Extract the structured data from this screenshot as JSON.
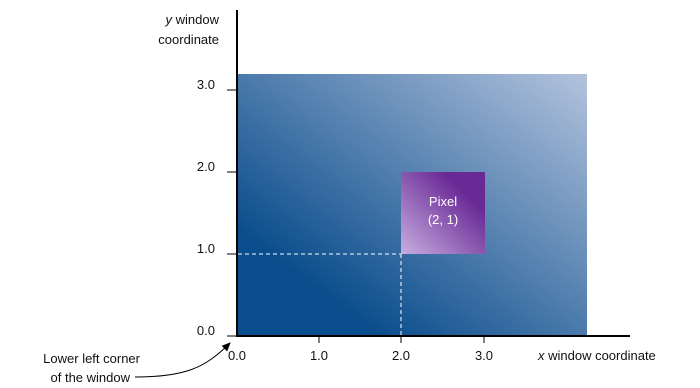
{
  "y_axis_label": {
    "variable": "y",
    "line1_rest": " window",
    "line2": "coordinate"
  },
  "x_axis_label": {
    "variable": "x",
    "rest": " window coordinate"
  },
  "y_ticks": [
    "0.0",
    "1.0",
    "2.0",
    "3.0"
  ],
  "x_ticks": [
    "0.0",
    "1.0",
    "2.0",
    "3.0"
  ],
  "pixel_label": {
    "line1": "Pixel",
    "line2": "(2, 1)"
  },
  "corner_note": {
    "line1": "Lower left corner",
    "line2": "of the window"
  },
  "colors": {
    "window_dark": "#0a4d8c",
    "window_light": "#b3c3dd",
    "pixel_dark": "#6a2a96",
    "pixel_light": "#c8aee0",
    "axis": "#000000",
    "guide": "#ffffff"
  }
}
